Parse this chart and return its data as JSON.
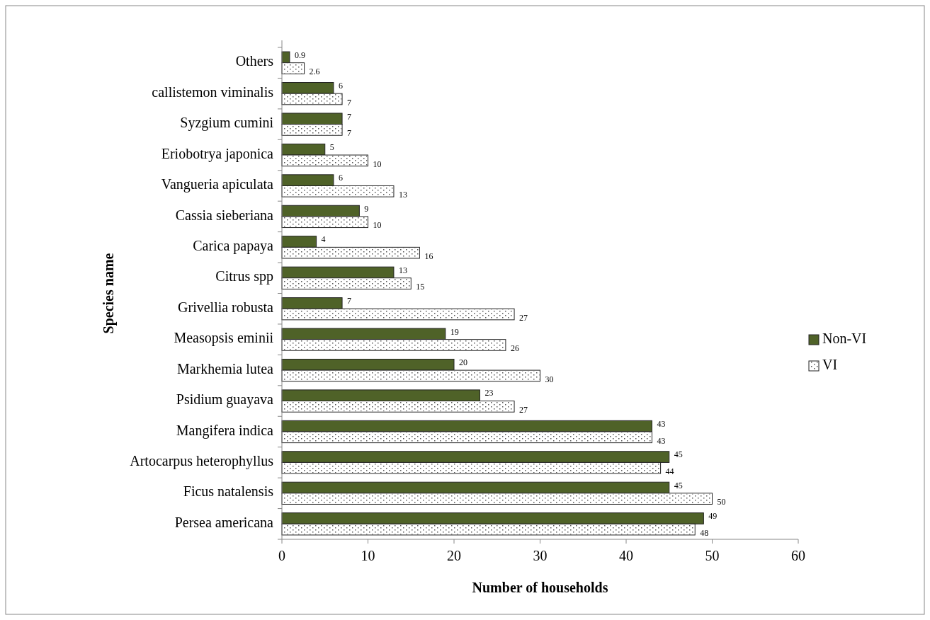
{
  "chart_data": {
    "type": "bar",
    "orientation": "horizontal",
    "xlabel": "Number of households",
    "ylabel": "Species name",
    "categories": [
      "Others",
      "callistemon viminalis",
      "Syzgium cumini",
      "Eriobotrya japonica",
      "Vangueria apiculata",
      "Cassia sieberiana",
      "Carica papaya",
      "Citrus spp",
      "Grivellia robusta",
      "Measopsis eminii",
      "Markhemia lutea",
      "Psidium guayava",
      "Mangifera indica",
      "Artocarpus heterophyllus",
      "Ficus natalensis",
      "Persea americana"
    ],
    "series": [
      {
        "name": "Non-VI",
        "color": "#4f6228",
        "values": [
          0.9,
          6,
          7,
          5,
          6,
          9,
          4,
          13,
          7,
          19,
          20,
          23,
          43,
          45,
          45,
          49
        ]
      },
      {
        "name": "VI",
        "color": "#ffffff",
        "values": [
          2.6,
          7,
          7,
          10,
          13,
          10,
          16,
          15,
          27,
          26,
          30,
          27,
          43,
          44,
          50,
          48
        ]
      }
    ],
    "xlim": [
      0,
      60
    ],
    "xticks": [
      0,
      10,
      20,
      30,
      40,
      50,
      60
    ],
    "grid": false,
    "legend": "right",
    "data_labels": true
  }
}
